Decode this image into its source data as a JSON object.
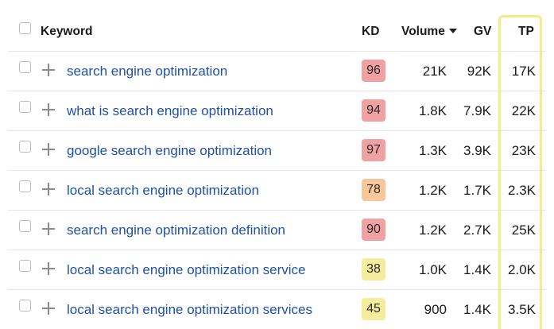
{
  "colors": {
    "link": "#1f4fa8",
    "kd_red": "#f0a1a1",
    "kd_orange": "#f7c79a",
    "kd_yellow": "#f5ec9c",
    "tp_highlight": "#f8ea8a"
  },
  "header": {
    "keyword": "Keyword",
    "kd": "KD",
    "volume": "Volume",
    "gv": "GV",
    "tp": "TP",
    "sort_icon": "caret-down-icon"
  },
  "rows": [
    {
      "keyword": "search engine optimization",
      "kd": "96",
      "kd_level": "red",
      "volume": "21K",
      "gv": "92K",
      "tp": "17K"
    },
    {
      "keyword": "what is search engine optimization",
      "kd": "94",
      "kd_level": "red",
      "volume": "1.8K",
      "gv": "7.9K",
      "tp": "22K"
    },
    {
      "keyword": "google search engine optimization",
      "kd": "97",
      "kd_level": "red",
      "volume": "1.3K",
      "gv": "3.9K",
      "tp": "23K"
    },
    {
      "keyword": "local search engine optimization",
      "kd": "78",
      "kd_level": "orange",
      "volume": "1.2K",
      "gv": "1.7K",
      "tp": "2.3K"
    },
    {
      "keyword": "search engine optimization definition",
      "kd": "90",
      "kd_level": "red",
      "volume": "1.2K",
      "gv": "2.7K",
      "tp": "25K"
    },
    {
      "keyword": "local search engine optimization service",
      "kd": "38",
      "kd_level": "yellow",
      "volume": "1.0K",
      "gv": "1.4K",
      "tp": "2.0K"
    },
    {
      "keyword": "local search engine optimization services",
      "kd": "45",
      "kd_level": "yellow",
      "volume": "900",
      "gv": "1.4K",
      "tp": "3.5K"
    }
  ]
}
